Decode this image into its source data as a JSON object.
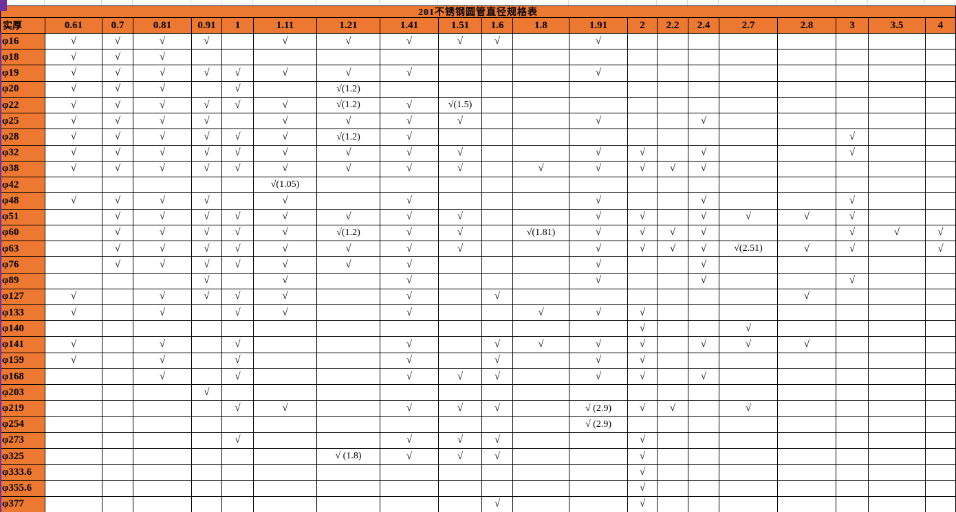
{
  "sheet": {
    "title": "201不锈钢圆管直径规格表",
    "corner_label": "实厚",
    "check_symbol": "√",
    "columns": [
      "0.61",
      "0.7",
      "0.81",
      "0.91",
      "1",
      "1.11",
      "1.21",
      "1.41",
      "1.51",
      "1.6",
      "1.8",
      "1.91",
      "2",
      "2.2",
      "2.4",
      "2.7",
      "2.8",
      "3",
      "3.5",
      "4"
    ],
    "rows": [
      {
        "label": "φ16",
        "cells": [
          "√",
          "√",
          "√",
          "√",
          "",
          "√",
          "√",
          "√",
          "√",
          "√",
          "",
          "√",
          "",
          "",
          "",
          "",
          "",
          "",
          "",
          ""
        ]
      },
      {
        "label": "φ18",
        "cells": [
          "√",
          "√",
          "√",
          "",
          "",
          "",
          "",
          "",
          "",
          "",
          "",
          "",
          "",
          "",
          "",
          "",
          "",
          "",
          "",
          ""
        ]
      },
      {
        "label": "φ19",
        "cells": [
          "√",
          "√",
          "√",
          "√",
          "√",
          "√",
          "√",
          "√",
          "",
          "",
          "",
          "√",
          "",
          "",
          "",
          "",
          "",
          "",
          "",
          ""
        ]
      },
      {
        "label": "φ20",
        "cells": [
          "√",
          "√",
          "√",
          "",
          "√",
          "",
          "√(1.2)",
          "",
          "",
          "",
          "",
          "",
          "",
          "",
          "",
          "",
          "",
          "",
          "",
          ""
        ]
      },
      {
        "label": "φ22",
        "cells": [
          "√",
          "√",
          "√",
          "√",
          "√",
          "√",
          "√(1.2)",
          "√",
          "√(1.5)",
          "",
          "",
          "",
          "",
          "",
          "",
          "",
          "",
          "",
          "",
          ""
        ]
      },
      {
        "label": "φ25",
        "cells": [
          "√",
          "√",
          "√",
          "√",
          "",
          "√",
          "√",
          "√",
          "√",
          "",
          "",
          "√",
          "",
          "",
          "√",
          "",
          "",
          "",
          "",
          ""
        ]
      },
      {
        "label": "φ28",
        "cells": [
          "√",
          "√",
          "√",
          "√",
          "√",
          "√",
          "√(1.2)",
          "√",
          "",
          "",
          "",
          "",
          "",
          "",
          "",
          "",
          "",
          "√",
          "",
          ""
        ]
      },
      {
        "label": "φ32",
        "cells": [
          "√",
          "√",
          "√",
          "√",
          "√",
          "√",
          "√",
          "√",
          "√",
          "",
          "",
          "√",
          "√",
          "",
          "√",
          "",
          "",
          "√",
          "",
          ""
        ]
      },
      {
        "label": "φ38",
        "cells": [
          "√",
          "√",
          "√",
          "√",
          "√",
          "√",
          "√",
          "√",
          "√",
          "",
          "√",
          "√",
          "√",
          "√",
          "√",
          "",
          "",
          "",
          "",
          ""
        ]
      },
      {
        "label": "φ42",
        "cells": [
          "",
          "",
          "",
          "",
          "",
          "√(1.05)",
          "",
          "",
          "",
          "",
          "",
          "",
          "",
          "",
          "",
          "",
          "",
          "",
          "",
          ""
        ]
      },
      {
        "label": "φ48",
        "cells": [
          "√",
          "√",
          "√",
          "√",
          "",
          "√",
          "",
          "√",
          "",
          "",
          "",
          "√",
          "",
          "",
          "√",
          "",
          "",
          "√",
          "",
          ""
        ]
      },
      {
        "label": "φ51",
        "cells": [
          "",
          "√",
          "√",
          "√",
          "√",
          "√",
          "√",
          "√",
          "√",
          "",
          "",
          "√",
          "√",
          "",
          "√",
          "√",
          "√",
          "√",
          "",
          ""
        ]
      },
      {
        "label": "φ60",
        "cells": [
          "",
          "√",
          "√",
          "√",
          "√",
          "√",
          "√(1.2)",
          "√",
          "√",
          "",
          "√(1.81)",
          "√",
          "√",
          "√",
          "√",
          "",
          "",
          "√",
          "√",
          "√"
        ]
      },
      {
        "label": "φ63",
        "cells": [
          "",
          "√",
          "√",
          "√",
          "√",
          "√",
          "√",
          "√",
          "√",
          "",
          "",
          "√",
          "√",
          "√",
          "√",
          "√(2.51)",
          "√",
          "√",
          "",
          "√"
        ]
      },
      {
        "label": "φ76",
        "cells": [
          "",
          "√",
          "√",
          "√",
          "√",
          "√",
          "√",
          "√",
          "",
          "",
          "",
          "√",
          "",
          "",
          "√",
          "",
          "",
          "",
          "",
          ""
        ]
      },
      {
        "label": "φ89",
        "cells": [
          "",
          "",
          "",
          "√",
          "",
          "√",
          "",
          "√",
          "",
          "",
          "",
          "√",
          "",
          "",
          "√",
          "",
          "",
          "√",
          "",
          ""
        ]
      },
      {
        "label": "φ127",
        "cells": [
          "√",
          "",
          "√",
          "√",
          "√",
          "√",
          "",
          "√",
          "",
          "√",
          "",
          "",
          "",
          "",
          "",
          "",
          "√",
          "",
          "",
          ""
        ]
      },
      {
        "label": "φ133",
        "cells": [
          "√",
          "",
          "√",
          "",
          "√",
          "√",
          "",
          "√",
          "",
          "",
          "√",
          "√",
          "√",
          "",
          "",
          "",
          "",
          "",
          "",
          ""
        ]
      },
      {
        "label": "φ140",
        "cells": [
          "",
          "",
          "",
          "",
          "",
          "",
          "",
          "",
          "",
          "",
          "",
          "",
          "√",
          "",
          "",
          "√",
          "",
          "",
          "",
          ""
        ]
      },
      {
        "label": "φ141",
        "cells": [
          "√",
          "",
          "√",
          "",
          "√",
          "",
          "",
          "√",
          "",
          "√",
          "√",
          "√",
          "√",
          "",
          "√",
          "√",
          "√",
          "",
          "",
          ""
        ]
      },
      {
        "label": "φ159",
        "cells": [
          "√",
          "",
          "√",
          "",
          "√",
          "",
          "",
          "√",
          "",
          "√",
          "",
          "√",
          "√",
          "",
          "",
          "",
          "",
          "",
          "",
          ""
        ]
      },
      {
        "label": "φ168",
        "cells": [
          "",
          "",
          "√",
          "",
          "√",
          "",
          "",
          "√",
          "√",
          "√",
          "",
          "√",
          "√",
          "",
          "√",
          "",
          "",
          "",
          "",
          ""
        ]
      },
      {
        "label": "φ203",
        "cells": [
          "",
          "",
          "",
          "√",
          "",
          "",
          "",
          "",
          "",
          "",
          "",
          "",
          "",
          "",
          "",
          "",
          "",
          "",
          "",
          ""
        ]
      },
      {
        "label": "φ219",
        "cells": [
          "",
          "",
          "",
          "",
          "√",
          "√",
          "",
          "√",
          "√",
          "√",
          "",
          "√ (2.9)",
          "√",
          "√",
          "",
          "√",
          "",
          "",
          "",
          ""
        ]
      },
      {
        "label": "φ254",
        "cells": [
          "",
          "",
          "",
          "",
          "",
          "",
          "",
          "",
          "",
          "",
          "",
          "√ (2.9)",
          "",
          "",
          "",
          "",
          "",
          "",
          "",
          ""
        ]
      },
      {
        "label": "φ273",
        "cells": [
          "",
          "",
          "",
          "",
          "√",
          "",
          "",
          "√",
          "√",
          "√",
          "",
          "",
          "√",
          "",
          "",
          "",
          "",
          "",
          "",
          ""
        ]
      },
      {
        "label": "φ325",
        "cells": [
          "",
          "",
          "",
          "",
          "",
          "",
          "√ (1.8)",
          "√",
          "√",
          "√",
          "",
          "",
          "√",
          "",
          "",
          "",
          "",
          "",
          "",
          ""
        ]
      },
      {
        "label": "φ333.6",
        "cells": [
          "",
          "",
          "",
          "",
          "",
          "",
          "",
          "",
          "",
          "",
          "",
          "",
          "√",
          "",
          "",
          "",
          "",
          "",
          "",
          ""
        ]
      },
      {
        "label": "φ355.6",
        "cells": [
          "",
          "",
          "",
          "",
          "",
          "",
          "",
          "",
          "",
          "",
          "",
          "",
          "√",
          "",
          "",
          "",
          "",
          "",
          "",
          ""
        ]
      },
      {
        "label": "φ377",
        "cells": [
          "",
          "",
          "",
          "",
          "",
          "",
          "",
          "",
          "",
          "√",
          "",
          "",
          "√",
          "",
          "",
          "",
          "",
          "",
          "",
          ""
        ]
      }
    ]
  },
  "colors": {
    "header_orange": "#ED7831",
    "grid_black": "#000000",
    "sheet_gridline_gray": "#D9D9D9",
    "edge_purple": "#7030A0"
  }
}
